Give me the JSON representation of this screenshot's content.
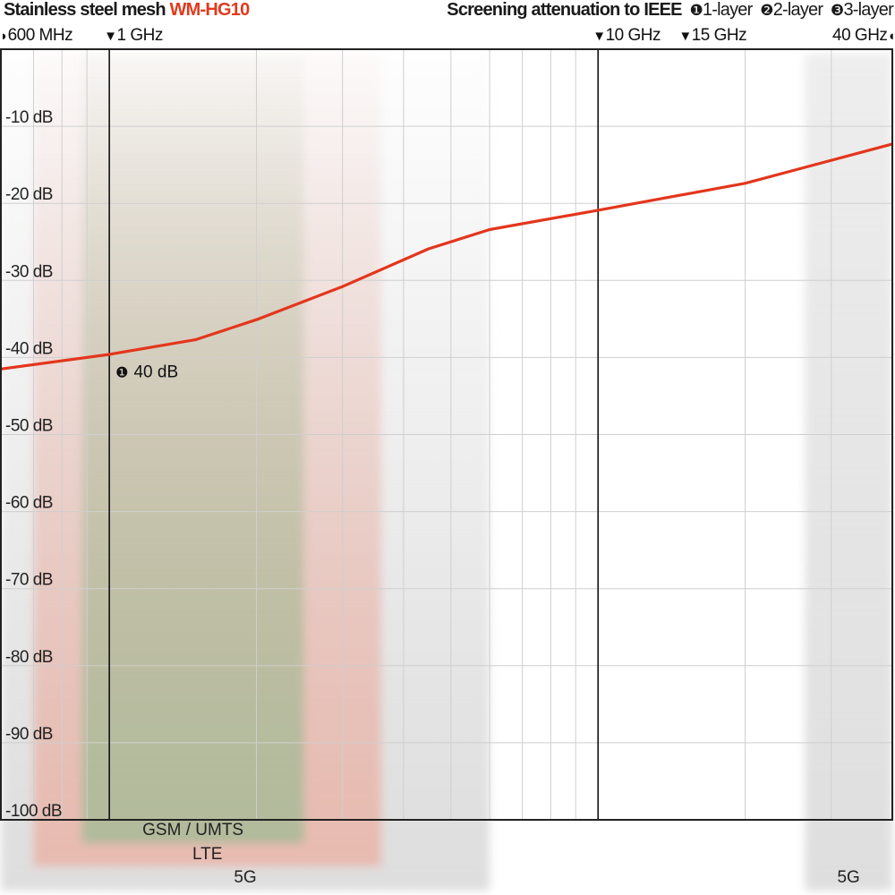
{
  "header": {
    "product": "Stainless steel mesh",
    "model": "WM-HG10",
    "subtitle": "Screening attenuation to IEEE",
    "legend": [
      {
        "marker": "❶",
        "label": "1-layer"
      },
      {
        "marker": "❷",
        "label": "2-layer"
      },
      {
        "marker": "❸",
        "label": "3-layer"
      }
    ]
  },
  "colors": {
    "curve": "#e3361c",
    "model": "#e03a1e",
    "grid": "#cfcfcf",
    "frame": "#222222",
    "band_5g": "#dcdcdc",
    "band_lte": "#e8b9ae",
    "band_gsm": "#aebb9a"
  },
  "chart_data": {
    "type": "line",
    "title": "Screening attenuation to IEEE",
    "x_scale": "log",
    "x_unit": "GHz",
    "xlim": [
      0.6,
      40
    ],
    "ylim": [
      -100,
      0
    ],
    "grid": true,
    "x_gridlines": [
      0.7,
      0.8,
      0.9,
      1,
      2,
      3,
      4,
      5,
      6,
      7,
      8,
      9,
      10,
      20,
      30
    ],
    "x_emphasis_lines": [
      1,
      10
    ],
    "y_ticks": [
      {
        "value": -10,
        "label": "-10 dB"
      },
      {
        "value": -20,
        "label": "-20 dB"
      },
      {
        "value": -30,
        "label": "-30 dB"
      },
      {
        "value": -40,
        "label": "-40 dB"
      },
      {
        "value": -50,
        "label": "-50 dB"
      },
      {
        "value": -60,
        "label": "-60 dB"
      },
      {
        "value": -70,
        "label": "-70 dB"
      },
      {
        "value": -80,
        "label": "-80 dB"
      },
      {
        "value": -90,
        "label": "-90 dB"
      },
      {
        "value": -100,
        "label": "-100 dB"
      }
    ],
    "frequency_markers": [
      {
        "value": 0.6,
        "label": "600 MHz",
        "glyph": "◗",
        "side": "left"
      },
      {
        "value": 1,
        "label": "1 GHz",
        "glyph": "▼",
        "side": "left"
      },
      {
        "value": 10,
        "label": "10 GHz",
        "glyph": "▼",
        "side": "left"
      },
      {
        "value": 15,
        "label": "15 GHz",
        "glyph": "▼",
        "side": "left"
      },
      {
        "value": 40,
        "label": "40 GHz",
        "glyph": "◖",
        "side": "right"
      }
    ],
    "series": [
      {
        "layer": "1-layer",
        "x": [
          0.6,
          1,
          1.5,
          2,
          3,
          4.5,
          6,
          10,
          20,
          40
        ],
        "y": [
          -41.5,
          -39.6,
          -37.7,
          -35.1,
          -30.8,
          -25.9,
          -23.4,
          -20.9,
          -17.4,
          -12.3
        ]
      }
    ],
    "annotations": [
      {
        "marker": "❶",
        "label": "40 dB",
        "x": 1,
        "y": -40
      }
    ],
    "bands": [
      {
        "label": "5G",
        "from": 0.6,
        "to": 6,
        "color": "#dcdcdc"
      },
      {
        "label": "LTE",
        "from": 0.7,
        "to": 3.6,
        "color": "#e8b9ae"
      },
      {
        "label": "GSM / UMTS",
        "from": 0.88,
        "to": 2.5,
        "color": "#aebb9a"
      },
      {
        "label": "5G",
        "from": 26.5,
        "to": 40,
        "color": "#dcdcdc"
      }
    ]
  }
}
